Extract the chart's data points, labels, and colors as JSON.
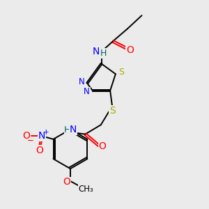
{
  "background_color": "#ebebeb",
  "colors": {
    "N": "#0000ff",
    "O": "#ff0000",
    "S": "#aaaa00",
    "H": "#006060",
    "C": "#000000"
  },
  "lw": 1.4,
  "fs": 8.5
}
